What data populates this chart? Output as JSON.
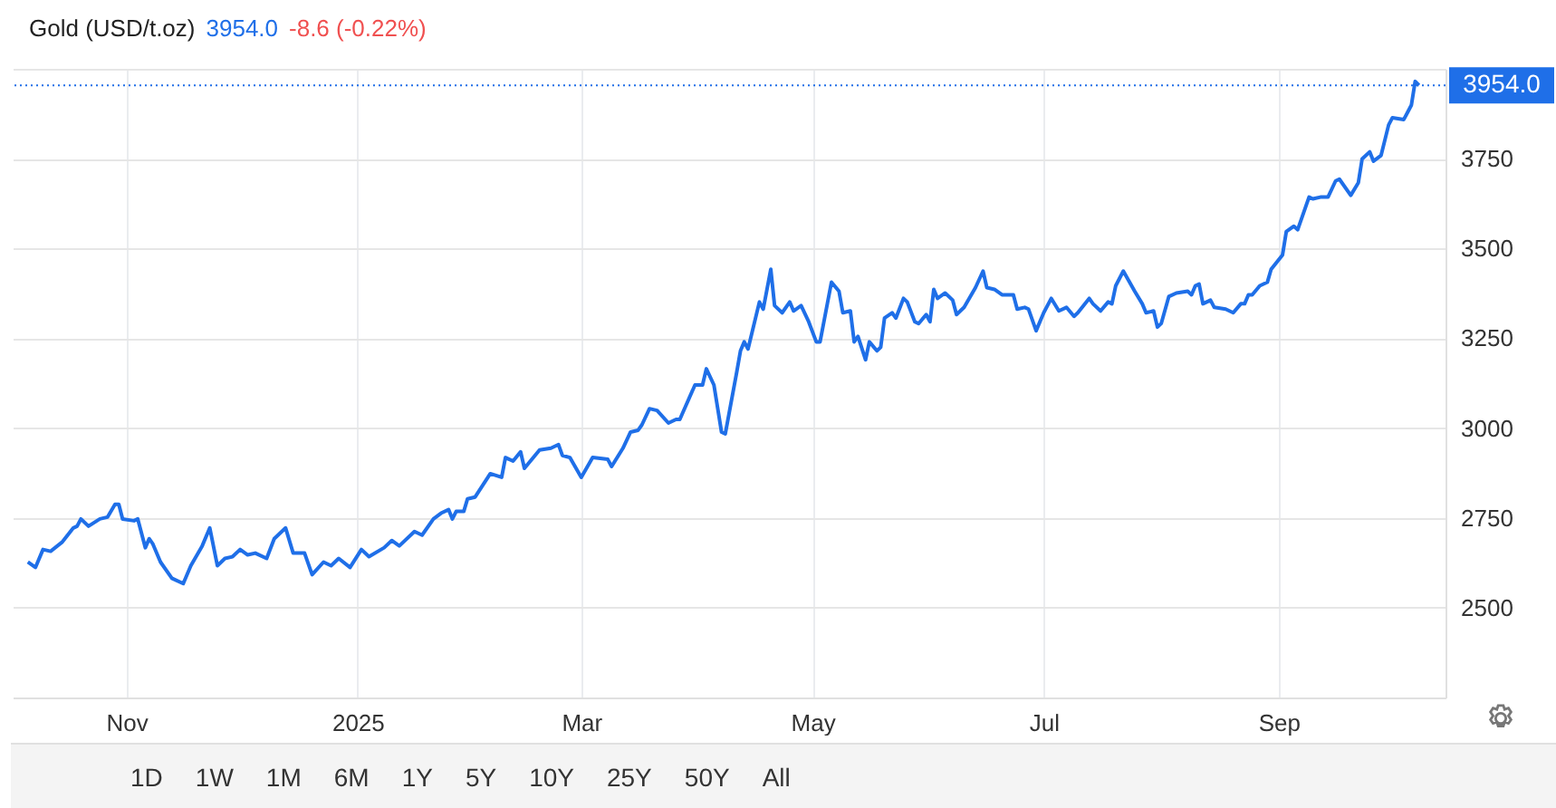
{
  "chart_data": {
    "type": "line",
    "title": "Gold (USD/t.oz)",
    "annotations": [
      "3954.0",
      "-8.6 (-0.22%)",
      "1D",
      "1W",
      "1M",
      "6M",
      "1Y",
      "5Y",
      "10Y",
      "25Y",
      "50Y",
      "All"
    ],
    "x": [
      "2024-10-06",
      "2024-10-08",
      "2024-10-10",
      "2024-10-12",
      "2024-10-15",
      "2024-10-18",
      "2024-10-19",
      "2024-10-20",
      "2024-10-22",
      "2024-10-25",
      "2024-10-27",
      "2024-10-29",
      "2024-10-30",
      "2024-10-31",
      "2024-11-03",
      "2024-11-04",
      "2024-11-06",
      "2024-11-07",
      "2024-11-08",
      "2024-11-10",
      "2024-11-13",
      "2024-11-16",
      "2024-11-18",
      "2024-11-21",
      "2024-11-23",
      "2024-11-25",
      "2024-11-27",
      "2024-11-29",
      "2024-12-01",
      "2024-12-03",
      "2024-12-05",
      "2024-12-08",
      "2024-12-10",
      "2024-12-13",
      "2024-12-15",
      "2024-12-18",
      "2024-12-20",
      "2024-12-23",
      "2024-12-25",
      "2024-12-27",
      "2024-12-30",
      "2025-01-02",
      "2025-01-04",
      "2025-01-08",
      "2025-01-10",
      "2025-01-12",
      "2025-01-16",
      "2025-01-18",
      "2025-01-21",
      "2025-01-23",
      "2025-01-25",
      "2025-01-26",
      "2025-01-27",
      "2025-01-29",
      "2025-01-30",
      "2025-02-01",
      "2025-02-05",
      "2025-02-08",
      "2025-02-09",
      "2025-02-11",
      "2025-02-13",
      "2025-02-14",
      "2025-02-18",
      "2025-02-21",
      "2025-02-23",
      "2025-02-24",
      "2025-02-26",
      "2025-03-01",
      "2025-03-04",
      "2025-03-08",
      "2025-03-09",
      "2025-03-12",
      "2025-03-14",
      "2025-03-16",
      "2025-03-17",
      "2025-03-19",
      "2025-03-21",
      "2025-03-24",
      "2025-03-26",
      "2025-03-27",
      "2025-03-31",
      "2025-04-02",
      "2025-04-03",
      "2025-04-05",
      "2025-04-07",
      "2025-04-08",
      "2025-04-11",
      "2025-04-12",
      "2025-04-13",
      "2025-04-14",
      "2025-04-17",
      "2025-04-18",
      "2025-04-20",
      "2025-04-21",
      "2025-04-23",
      "2025-04-25",
      "2025-04-26",
      "2025-04-28",
      "2025-04-30",
      "2025-05-02",
      "2025-05-03",
      "2025-05-06",
      "2025-05-08",
      "2025-05-09",
      "2025-05-11",
      "2025-05-12",
      "2025-05-13",
      "2025-05-15",
      "2025-05-16",
      "2025-05-18",
      "2025-05-19",
      "2025-05-20",
      "2025-05-22",
      "2025-05-23",
      "2025-05-25",
      "2025-05-26",
      "2025-05-28",
      "2025-05-29",
      "2025-05-31",
      "2025-06-01",
      "2025-06-02",
      "2025-06-03",
      "2025-06-05",
      "2025-06-07",
      "2025-06-08",
      "2025-06-10",
      "2025-06-13",
      "2025-06-15",
      "2025-06-16",
      "2025-06-18",
      "2025-06-20",
      "2025-06-23",
      "2025-06-24",
      "2025-06-26",
      "2025-06-27",
      "2025-06-29",
      "2025-07-01",
      "2025-07-03",
      "2025-07-05",
      "2025-07-07",
      "2025-07-09",
      "2025-07-10",
      "2025-07-13",
      "2025-07-14",
      "2025-07-16",
      "2025-07-18",
      "2025-07-19",
      "2025-07-20",
      "2025-07-22",
      "2025-07-25",
      "2025-07-27",
      "2025-07-28",
      "2025-07-30",
      "2025-07-31",
      "2025-08-01",
      "2025-08-03",
      "2025-08-05",
      "2025-08-08",
      "2025-08-09",
      "2025-08-10",
      "2025-08-11",
      "2025-08-12",
      "2025-08-14",
      "2025-08-15",
      "2025-08-18",
      "2025-08-20",
      "2025-08-22",
      "2025-08-23",
      "2025-08-24",
      "2025-08-25",
      "2025-08-27",
      "2025-08-29",
      "2025-08-30",
      "2025-09-02",
      "2025-09-03",
      "2025-09-05",
      "2025-09-06",
      "2025-09-09",
      "2025-09-10",
      "2025-09-12",
      "2025-09-14",
      "2025-09-16",
      "2025-09-17",
      "2025-09-20",
      "2025-09-22",
      "2025-09-23",
      "2025-09-25",
      "2025-09-26",
      "2025-09-28",
      "2025-09-30",
      "2025-10-01",
      "2025-10-04",
      "2025-10-05",
      "2025-10-06",
      "2025-10-07",
      "2025-10-08"
    ],
    "series": [
      {
        "color": "#1f6fe8",
        "values": [
          2627,
          2612,
          2662,
          2657,
          2682,
          2722,
          2727,
          2747,
          2727,
          2747,
          2752,
          2788,
          2788,
          2747,
          2742,
          2747,
          2667,
          2692,
          2677,
          2627,
          2582,
          2567,
          2617,
          2672,
          2722,
          2617,
          2637,
          2642,
          2662,
          2647,
          2652,
          2637,
          2692,
          2722,
          2652,
          2652,
          2592,
          2627,
          2617,
          2637,
          2612,
          2662,
          2642,
          2667,
          2687,
          2672,
          2712,
          2702,
          2747,
          2763,
          2773,
          2747,
          2768,
          2768,
          2803,
          2808,
          2873,
          2863,
          2918,
          2908,
          2934,
          2888,
          2939,
          2944,
          2954,
          2924,
          2918,
          2863,
          2918,
          2913,
          2893,
          2944,
          2989,
          2994,
          3009,
          3054,
          3049,
          3014,
          3024,
          3024,
          3120,
          3120,
          3165,
          3120,
          2989,
          2984,
          3155,
          3215,
          3240,
          3220,
          3351,
          3331,
          3442,
          3341,
          3321,
          3351,
          3326,
          3341,
          3296,
          3240,
          3240,
          3406,
          3381,
          3321,
          3326,
          3240,
          3255,
          3190,
          3240,
          3215,
          3225,
          3306,
          3321,
          3306,
          3361,
          3351,
          3296,
          3291,
          3316,
          3296,
          3386,
          3361,
          3376,
          3356,
          3316,
          3336,
          3391,
          3437,
          3391,
          3386,
          3371,
          3371,
          3331,
          3336,
          3331,
          3271,
          3321,
          3361,
          3326,
          3336,
          3311,
          3321,
          3361,
          3346,
          3326,
          3351,
          3346,
          3396,
          3437,
          3381,
          3346,
          3321,
          3326,
          3281,
          3291,
          3366,
          3376,
          3381,
          3371,
          3396,
          3401,
          3346,
          3356,
          3336,
          3331,
          3321,
          3346,
          3346,
          3371,
          3371,
          3396,
          3406,
          3442,
          3482,
          3547,
          3562,
          3552,
          3643,
          3638,
          3643,
          3643,
          3688,
          3693,
          3648,
          3683,
          3749,
          3769,
          3743,
          3759,
          3844,
          3864,
          3859,
          3879,
          3899,
          3965,
          3954
        ]
      }
    ],
    "xlim": [
      "2024-10-02",
      "2025-10-15"
    ],
    "xticks": [
      {
        "value": "2024-11-01",
        "label": "Nov"
      },
      {
        "value": "2025-01-01",
        "label": "2025"
      },
      {
        "value": "2025-03-01",
        "label": "Mar"
      },
      {
        "value": "2025-05-01",
        "label": "May"
      },
      {
        "value": "2025-07-01",
        "label": "Jul"
      },
      {
        "value": "2025-09-01",
        "label": "Sep"
      }
    ],
    "ylim": [
      2250,
      4000
    ],
    "yticks": [
      2500,
      2750,
      3000,
      3250,
      3500,
      3750,
      {
        "value": 4000,
        "label": null
      }
    ],
    "grid": true,
    "line_style": "solid",
    "ref_lines": [
      {
        "axis": "y",
        "value": 3954,
        "label": "3954.0",
        "color": "#1f6fe8",
        "line_style": "dotted"
      }
    ]
  }
}
